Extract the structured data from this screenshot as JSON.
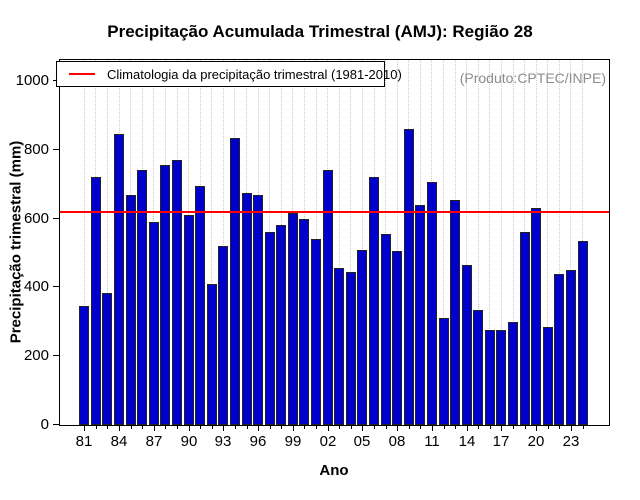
{
  "page": {
    "title": "Precipitação Acumulada Trimestral (AMJ): Região 28",
    "annotation": "(Produto:CPTEC/INPE)"
  },
  "legend": {
    "label": "Climatologia da precipitação trimestral (1981-2010)"
  },
  "axes": {
    "x_label": "Ano",
    "y_label": "Precipitação trimestral (mm)",
    "y_tick_labels": [
      "0",
      "200",
      "400",
      "600",
      "800",
      "1000"
    ],
    "x_tick_labels": [
      "81",
      "84",
      "87",
      "90",
      "93",
      "96",
      "99",
      "02",
      "05",
      "08",
      "11",
      "14",
      "17",
      "20",
      "23"
    ]
  },
  "colors": {
    "bar_fill": "#0000CC",
    "bar_border": "#222222",
    "climatology_line": "#FF0000",
    "grid_line": "#C9C9C9",
    "annotation_text": "#8C8C8C"
  },
  "chart_data": {
    "type": "bar",
    "title": "Precipitação Acumulada Trimestral (AMJ): Região 28",
    "xlabel": "Ano",
    "ylabel": "Precipitação trimestral (mm)",
    "ylim": [
      0,
      1060
    ],
    "y_ticks": [
      0,
      200,
      400,
      600,
      800,
      1000
    ],
    "grid": "vertical-dotted",
    "legend": "Climatologia da precipitação trimestral (1981-2010)",
    "legend_position": "top-left",
    "annotation": "(Produto:CPTEC/INPE)",
    "x_tick_label_every": 3,
    "climatology_value": 620,
    "categories": [
      1981,
      1982,
      1983,
      1984,
      1985,
      1986,
      1987,
      1988,
      1989,
      1990,
      1991,
      1992,
      1993,
      1994,
      1995,
      1996,
      1997,
      1998,
      1999,
      2000,
      2001,
      2002,
      2003,
      2004,
      2005,
      2006,
      2007,
      2008,
      2009,
      2010,
      2011,
      2012,
      2013,
      2014,
      2015,
      2016,
      2017,
      2018,
      2019,
      2020,
      2021,
      2022,
      2023,
      2024
    ],
    "values": [
      345,
      720,
      385,
      845,
      670,
      740,
      590,
      755,
      770,
      610,
      695,
      410,
      520,
      835,
      675,
      670,
      560,
      580,
      615,
      600,
      540,
      740,
      455,
      445,
      510,
      720,
      555,
      505,
      860,
      640,
      705,
      310,
      655,
      465,
      335,
      275,
      275,
      300,
      560,
      630,
      285,
      440,
      450,
      535
    ]
  }
}
